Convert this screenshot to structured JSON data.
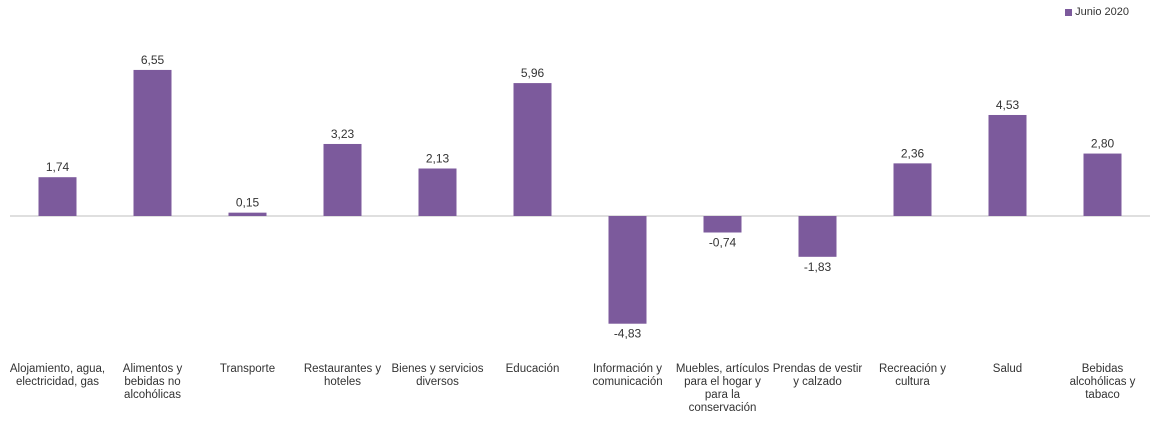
{
  "chart_data": {
    "type": "bar",
    "categories": [
      "Alojamiento, agua, electricidad, gas",
      "Alimentos y bebidas no alcohólicas",
      "Transporte",
      "Restaurantes y hoteles",
      "Bienes y servicios diversos",
      "Educación",
      "Información y comunicación",
      "Muebles, artículos para el hogar y para la conservación",
      "Prendas de vestir y calzado",
      "Recreación y cultura",
      "Salud",
      "Bebidas alcohólicas y tabaco"
    ],
    "value_labels": [
      "1,74",
      "6,55",
      "0,15",
      "3,23",
      "2,13",
      "5,96",
      "-4,83",
      "-0,74",
      "-1,83",
      "2,36",
      "4,53",
      "2,80"
    ],
    "series": [
      {
        "name": "Junio 2020",
        "values": [
          1.74,
          6.55,
          0.15,
          3.23,
          2.13,
          5.96,
          -4.83,
          -0.74,
          -1.83,
          2.36,
          4.53,
          2.8
        ]
      }
    ],
    "ylim": [
      -5,
      7
    ],
    "grid": false,
    "legend_position": "top-right",
    "colors": {
      "bar": "#7c5a9c",
      "axis": "#bfbfbf"
    }
  }
}
